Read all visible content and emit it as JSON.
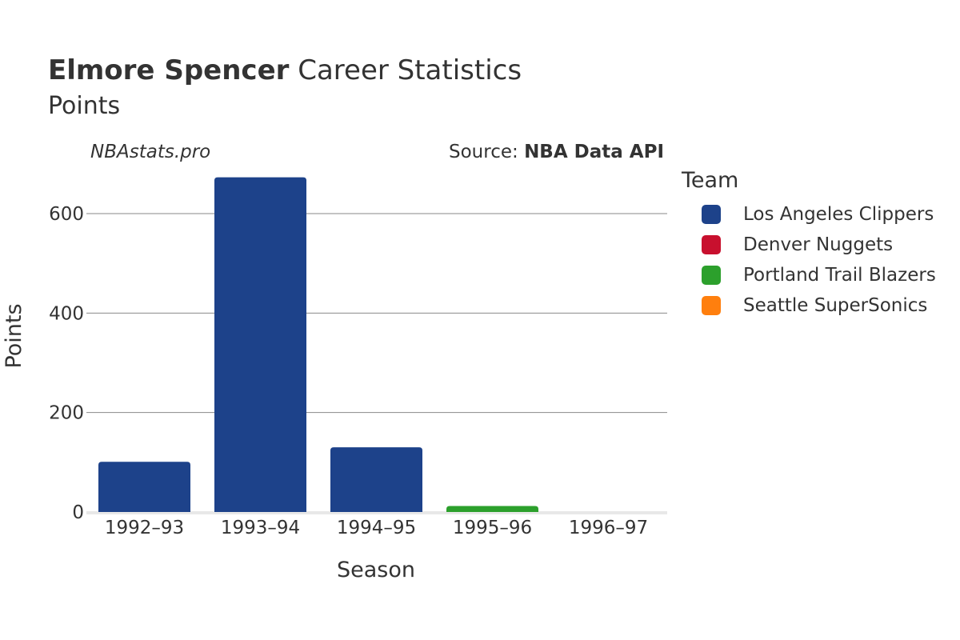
{
  "title": {
    "player": "Elmore Spencer",
    "rest": "Career Statistics"
  },
  "subtitle": "Points",
  "watermark": "NBAstats.pro",
  "source": {
    "prefix": "Source:",
    "name": "NBA Data API"
  },
  "legend": {
    "title": "Team",
    "items": [
      {
        "label": "Los Angeles Clippers",
        "color": "#1d428a"
      },
      {
        "label": "Denver Nuggets",
        "color": "#c8102e"
      },
      {
        "label": "Portland Trail Blazers",
        "color": "#2ca02c"
      },
      {
        "label": "Seattle SuperSonics",
        "color": "#ff7f0e"
      }
    ]
  },
  "chart_data": {
    "type": "bar",
    "xlabel": "Season",
    "ylabel": "Points",
    "categories": [
      "1992–93",
      "1993–94",
      "1994–95",
      "1995–96",
      "1996–97"
    ],
    "ylim": [
      0,
      700
    ],
    "yticks": [
      0,
      200,
      400,
      600
    ],
    "grid": true,
    "legend_position": "right",
    "bars": [
      {
        "category": "1992–93",
        "team": "Los Angeles Clippers",
        "value": 101,
        "color": "#1d428a"
      },
      {
        "category": "1993–94",
        "team": "Los Angeles Clippers",
        "value": 673,
        "color": "#1d428a"
      },
      {
        "category": "1994–95",
        "team": "Los Angeles Clippers",
        "value": 130,
        "color": "#1d428a"
      },
      {
        "category": "1995–96",
        "team": "Portland Trail Blazers",
        "value": 12,
        "color": "#2ca02c"
      },
      {
        "category": "1996–97",
        "team": "Seattle SuperSonics",
        "value": 0,
        "color": "#ff7f0e"
      }
    ]
  }
}
